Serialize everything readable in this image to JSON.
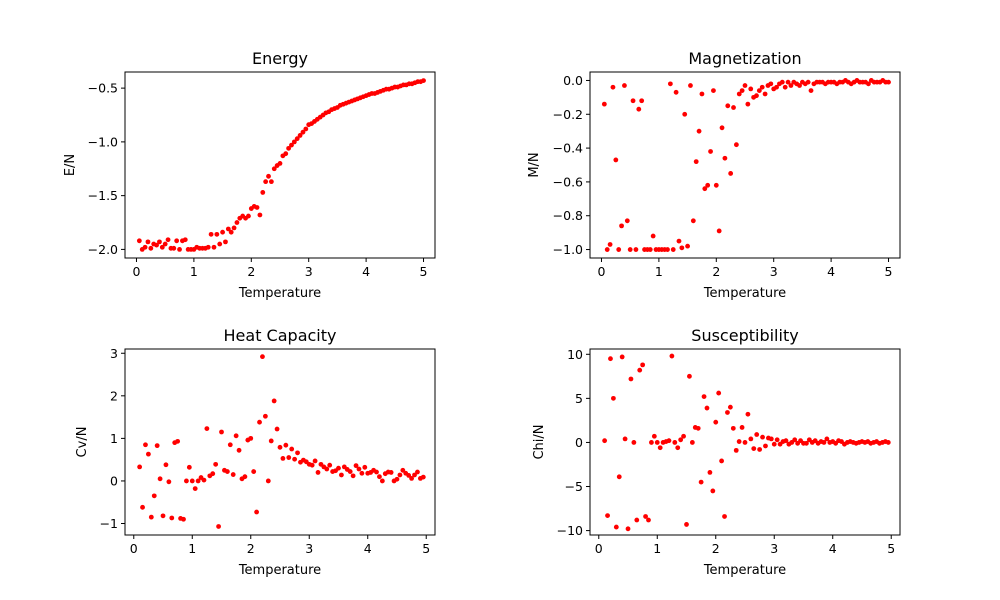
{
  "figure": {
    "background": "#ffffff",
    "marker_color": "#ff0000"
  },
  "chart_data": [
    {
      "type": "scatter",
      "title": "Energy",
      "xlabel": "Temperature",
      "ylabel": "E/N",
      "xlim": [
        -0.2,
        5.2
      ],
      "ylim": [
        -2.08,
        -0.35
      ],
      "xticks": [
        0,
        1,
        2,
        3,
        4,
        5
      ],
      "xtick_labels": [
        "0",
        "1",
        "2",
        "3",
        "4",
        "5"
      ],
      "yticks": [
        -2.0,
        -1.5,
        -1.0,
        -0.5
      ],
      "ytick_labels": [
        "−2.0",
        "−1.5",
        "−1.0",
        "−0.5"
      ],
      "grid": false,
      "color": "#ff0000",
      "x": [
        0.05,
        0.1,
        0.15,
        0.2,
        0.25,
        0.3,
        0.35,
        0.4,
        0.45,
        0.5,
        0.55,
        0.6,
        0.65,
        0.7,
        0.75,
        0.8,
        0.85,
        0.9,
        0.95,
        1.0,
        1.05,
        1.1,
        1.15,
        1.2,
        1.25,
        1.3,
        1.35,
        1.4,
        1.45,
        1.5,
        1.55,
        1.6,
        1.65,
        1.7,
        1.75,
        1.8,
        1.85,
        1.9,
        1.95,
        2.0,
        2.05,
        2.1,
        2.15,
        2.2,
        2.25,
        2.3,
        2.35,
        2.4,
        2.45,
        2.5,
        2.55,
        2.6,
        2.65,
        2.7,
        2.75,
        2.8,
        2.85,
        2.9,
        2.95,
        3.0,
        3.05,
        3.1,
        3.15,
        3.2,
        3.25,
        3.3,
        3.35,
        3.4,
        3.45,
        3.5,
        3.55,
        3.6,
        3.65,
        3.7,
        3.75,
        3.8,
        3.85,
        3.9,
        3.95,
        4.0,
        4.05,
        4.1,
        4.15,
        4.2,
        4.25,
        4.3,
        4.35,
        4.4,
        4.45,
        4.5,
        4.55,
        4.6,
        4.65,
        4.7,
        4.75,
        4.8,
        4.85,
        4.9,
        4.95,
        5.0
      ],
      "y": [
        -1.92,
        -2.0,
        -1.98,
        -1.93,
        -1.99,
        -1.95,
        -1.96,
        -1.93,
        -1.98,
        -1.95,
        -1.91,
        -1.99,
        -1.99,
        -1.92,
        -2.0,
        -1.92,
        -1.91,
        -2.0,
        -2.0,
        -2.0,
        -1.98,
        -1.99,
        -1.99,
        -1.99,
        -1.98,
        -1.86,
        -1.98,
        -1.86,
        -1.95,
        -1.84,
        -1.93,
        -1.81,
        -1.84,
        -1.8,
        -1.75,
        -1.71,
        -1.69,
        -1.71,
        -1.69,
        -1.62,
        -1.6,
        -1.61,
        -1.68,
        -1.47,
        -1.37,
        -1.32,
        -1.37,
        -1.25,
        -1.22,
        -1.2,
        -1.13,
        -1.11,
        -1.06,
        -1.03,
        -1.0,
        -0.97,
        -0.94,
        -0.91,
        -0.88,
        -0.84,
        -0.83,
        -0.81,
        -0.79,
        -0.77,
        -0.75,
        -0.73,
        -0.72,
        -0.7,
        -0.69,
        -0.68,
        -0.66,
        -0.65,
        -0.64,
        -0.63,
        -0.62,
        -0.61,
        -0.6,
        -0.59,
        -0.58,
        -0.57,
        -0.56,
        -0.55,
        -0.55,
        -0.54,
        -0.53,
        -0.52,
        -0.51,
        -0.51,
        -0.5,
        -0.49,
        -0.49,
        -0.48,
        -0.47,
        -0.47,
        -0.46,
        -0.46,
        -0.45,
        -0.44,
        -0.44,
        -0.43
      ]
    },
    {
      "type": "scatter",
      "title": "Magnetization",
      "xlabel": "Temperature",
      "ylabel": "M/N",
      "xlim": [
        -0.2,
        5.2
      ],
      "ylim": [
        -1.05,
        0.05
      ],
      "xticks": [
        0,
        1,
        2,
        3,
        4,
        5
      ],
      "xtick_labels": [
        "0",
        "1",
        "2",
        "3",
        "4",
        "5"
      ],
      "yticks": [
        -1.0,
        -0.8,
        -0.6,
        -0.4,
        -0.2,
        0.0
      ],
      "ytick_labels": [
        "−1.0",
        "−0.8",
        "−0.6",
        "−0.4",
        "−0.2",
        "0.0"
      ],
      "grid": false,
      "color": "#ff0000",
      "x": [
        0.05,
        0.1,
        0.15,
        0.2,
        0.25,
        0.3,
        0.35,
        0.4,
        0.45,
        0.5,
        0.55,
        0.6,
        0.65,
        0.7,
        0.75,
        0.8,
        0.85,
        0.9,
        0.95,
        1.0,
        1.05,
        1.1,
        1.15,
        1.2,
        1.25,
        1.3,
        1.35,
        1.4,
        1.45,
        1.5,
        1.55,
        1.6,
        1.65,
        1.7,
        1.75,
        1.8,
        1.85,
        1.9,
        1.95,
        2.0,
        2.05,
        2.1,
        2.15,
        2.2,
        2.25,
        2.3,
        2.35,
        2.4,
        2.45,
        2.5,
        2.55,
        2.6,
        2.65,
        2.7,
        2.75,
        2.8,
        2.85,
        2.9,
        2.95,
        3.0,
        3.05,
        3.1,
        3.15,
        3.2,
        3.25,
        3.3,
        3.35,
        3.4,
        3.45,
        3.5,
        3.55,
        3.6,
        3.65,
        3.7,
        3.75,
        3.8,
        3.85,
        3.9,
        3.95,
        4.0,
        4.05,
        4.1,
        4.15,
        4.2,
        4.25,
        4.3,
        4.35,
        4.4,
        4.45,
        4.5,
        4.55,
        4.6,
        4.65,
        4.7,
        4.75,
        4.8,
        4.85,
        4.9,
        4.95,
        5.0
      ],
      "y": [
        -0.14,
        -1.0,
        -0.97,
        -0.04,
        -0.47,
        -1.0,
        -0.86,
        -0.03,
        -0.83,
        -1.0,
        -0.12,
        -1.0,
        -0.17,
        -0.12,
        -1.0,
        -1.0,
        -1.0,
        -0.92,
        -1.0,
        -1.0,
        -1.0,
        -1.0,
        -1.0,
        -0.02,
        -1.0,
        -0.07,
        -0.95,
        -0.99,
        -0.2,
        -0.98,
        -0.03,
        -0.83,
        -0.48,
        -0.3,
        -0.08,
        -0.64,
        -0.62,
        -0.42,
        -0.06,
        -0.62,
        -0.89,
        -0.28,
        -0.46,
        -0.15,
        -0.55,
        -0.16,
        -0.38,
        -0.08,
        -0.06,
        -0.03,
        -0.14,
        -0.05,
        -0.1,
        -0.09,
        -0.06,
        -0.04,
        -0.08,
        -0.03,
        -0.02,
        -0.05,
        -0.04,
        -0.02,
        -0.01,
        -0.04,
        -0.01,
        -0.03,
        -0.01,
        -0.02,
        -0.03,
        -0.01,
        -0.02,
        -0.01,
        -0.06,
        -0.02,
        -0.01,
        -0.01,
        -0.01,
        -0.02,
        -0.01,
        -0.01,
        -0.01,
        -0.02,
        -0.01,
        -0.01,
        -0.0,
        -0.01,
        -0.02,
        -0.01,
        -0.0,
        -0.01,
        -0.01,
        -0.01,
        -0.02,
        -0.0,
        -0.01,
        -0.01,
        -0.01,
        -0.0,
        -0.01,
        -0.01
      ]
    },
    {
      "type": "scatter",
      "title": "Heat Capacity",
      "xlabel": "Temperature",
      "ylabel": "Cv/N",
      "xlim": [
        -0.15,
        5.15
      ],
      "ylim": [
        -1.27,
        3.1
      ],
      "xticks": [
        0,
        1,
        2,
        3,
        4,
        5
      ],
      "xtick_labels": [
        "0",
        "1",
        "2",
        "3",
        "4",
        "5"
      ],
      "yticks": [
        -1,
        0,
        1,
        2,
        3
      ],
      "ytick_labels": [
        "−1",
        "0",
        "1",
        "2",
        "3"
      ],
      "grid": false,
      "color": "#ff0000",
      "x": [
        0.1,
        0.15,
        0.2,
        0.25,
        0.3,
        0.35,
        0.4,
        0.45,
        0.5,
        0.55,
        0.6,
        0.65,
        0.7,
        0.75,
        0.8,
        0.85,
        0.9,
        0.95,
        1.0,
        1.05,
        1.1,
        1.15,
        1.2,
        1.25,
        1.3,
        1.35,
        1.4,
        1.45,
        1.5,
        1.55,
        1.6,
        1.65,
        1.7,
        1.75,
        1.8,
        1.85,
        1.9,
        1.95,
        2.0,
        2.05,
        2.1,
        2.15,
        2.2,
        2.25,
        2.3,
        2.35,
        2.4,
        2.45,
        2.5,
        2.55,
        2.6,
        2.65,
        2.7,
        2.75,
        2.8,
        2.85,
        2.9,
        2.95,
        3.0,
        3.05,
        3.1,
        3.15,
        3.2,
        3.25,
        3.3,
        3.35,
        3.4,
        3.45,
        3.5,
        3.55,
        3.6,
        3.65,
        3.7,
        3.75,
        3.8,
        3.85,
        3.9,
        3.95,
        4.0,
        4.05,
        4.1,
        4.15,
        4.2,
        4.25,
        4.3,
        4.35,
        4.4,
        4.45,
        4.5,
        4.55,
        4.6,
        4.65,
        4.7,
        4.75,
        4.8,
        4.85,
        4.9,
        4.95
      ],
      "y": [
        0.33,
        -0.62,
        0.85,
        0.63,
        -0.85,
        -0.35,
        0.83,
        0.05,
        -0.82,
        0.38,
        -0.02,
        -0.87,
        0.9,
        0.93,
        -0.88,
        -0.9,
        0.0,
        0.32,
        0.0,
        -0.18,
        0.0,
        0.08,
        0.02,
        1.23,
        0.12,
        0.17,
        0.39,
        -1.07,
        1.15,
        0.25,
        0.22,
        0.85,
        0.15,
        1.06,
        0.72,
        0.05,
        0.1,
        0.96,
        1.0,
        0.22,
        -0.73,
        1.38,
        2.92,
        1.52,
        0.0,
        0.94,
        1.88,
        1.22,
        0.79,
        0.53,
        0.84,
        0.55,
        0.75,
        0.51,
        0.66,
        0.44,
        0.49,
        0.45,
        0.39,
        0.37,
        0.47,
        0.2,
        0.39,
        0.33,
        0.28,
        0.37,
        0.22,
        0.24,
        0.3,
        0.14,
        0.33,
        0.27,
        0.22,
        0.12,
        0.36,
        0.28,
        0.18,
        0.32,
        0.18,
        0.2,
        0.25,
        0.21,
        0.1,
        0.0,
        0.17,
        0.21,
        0.2,
        0.0,
        0.04,
        0.14,
        0.25,
        0.18,
        0.13,
        0.06,
        0.14,
        0.21,
        0.06,
        0.09
      ]
    },
    {
      "type": "scatter",
      "title": "Susceptibility",
      "xlabel": "Temperature",
      "ylabel": "Chi/N",
      "xlim": [
        -0.15,
        5.15
      ],
      "ylim": [
        -10.5,
        10.6
      ],
      "xticks": [
        0,
        1,
        2,
        3,
        4,
        5
      ],
      "xtick_labels": [
        "0",
        "1",
        "2",
        "3",
        "4",
        "5"
      ],
      "yticks": [
        -10,
        -5,
        0,
        5,
        10
      ],
      "ytick_labels": [
        "−10",
        "−5",
        "0",
        "5",
        "10"
      ],
      "grid": false,
      "color": "#ff0000",
      "x": [
        0.1,
        0.15,
        0.2,
        0.25,
        0.3,
        0.35,
        0.4,
        0.45,
        0.5,
        0.55,
        0.6,
        0.65,
        0.7,
        0.75,
        0.8,
        0.85,
        0.9,
        0.95,
        1.0,
        1.05,
        1.1,
        1.15,
        1.2,
        1.25,
        1.3,
        1.35,
        1.4,
        1.45,
        1.5,
        1.55,
        1.6,
        1.65,
        1.7,
        1.75,
        1.8,
        1.85,
        1.9,
        1.95,
        2.0,
        2.05,
        2.1,
        2.15,
        2.2,
        2.25,
        2.3,
        2.35,
        2.4,
        2.45,
        2.5,
        2.55,
        2.6,
        2.65,
        2.7,
        2.75,
        2.8,
        2.85,
        2.9,
        2.95,
        3.0,
        3.05,
        3.1,
        3.15,
        3.2,
        3.25,
        3.3,
        3.35,
        3.4,
        3.45,
        3.5,
        3.55,
        3.6,
        3.65,
        3.7,
        3.75,
        3.8,
        3.85,
        3.9,
        3.95,
        4.0,
        4.05,
        4.1,
        4.15,
        4.2,
        4.25,
        4.3,
        4.35,
        4.4,
        4.45,
        4.5,
        4.55,
        4.6,
        4.65,
        4.7,
        4.75,
        4.8,
        4.85,
        4.9,
        4.95
      ],
      "y": [
        0.2,
        -8.3,
        9.5,
        5.0,
        -9.6,
        -3.9,
        9.7,
        0.4,
        -9.8,
        7.2,
        0.0,
        -8.8,
        8.2,
        8.8,
        -8.4,
        -8.8,
        0.0,
        0.7,
        0.0,
        -0.6,
        0.0,
        0.1,
        0.2,
        9.8,
        0.0,
        -0.6,
        0.3,
        0.7,
        -9.3,
        7.5,
        0.0,
        1.7,
        1.6,
        -4.5,
        5.2,
        3.9,
        -3.4,
        -5.5,
        2.3,
        5.6,
        -2.1,
        -8.4,
        3.4,
        4.0,
        1.6,
        -0.9,
        0.1,
        1.7,
        0.0,
        3.2,
        0.4,
        -0.7,
        0.9,
        -0.8,
        0.6,
        -0.4,
        0.5,
        0.4,
        -0.2,
        0.3,
        -0.2,
        0.1,
        0.2,
        -0.2,
        0.0,
        0.3,
        -0.1,
        0.2,
        -0.1,
        -0.1,
        0.3,
        0.0,
        0.2,
        -0.1,
        0.1,
        0.0,
        0.4,
        0.0,
        0.1,
        -0.1,
        0.2,
        0.1,
        -0.2,
        0.0,
        0.1,
        0.0,
        -0.1,
        0.0,
        0.1,
        0.0,
        0.1,
        -0.1,
        0.0,
        0.1,
        -0.1,
        0.0,
        0.1,
        0.0
      ]
    }
  ]
}
